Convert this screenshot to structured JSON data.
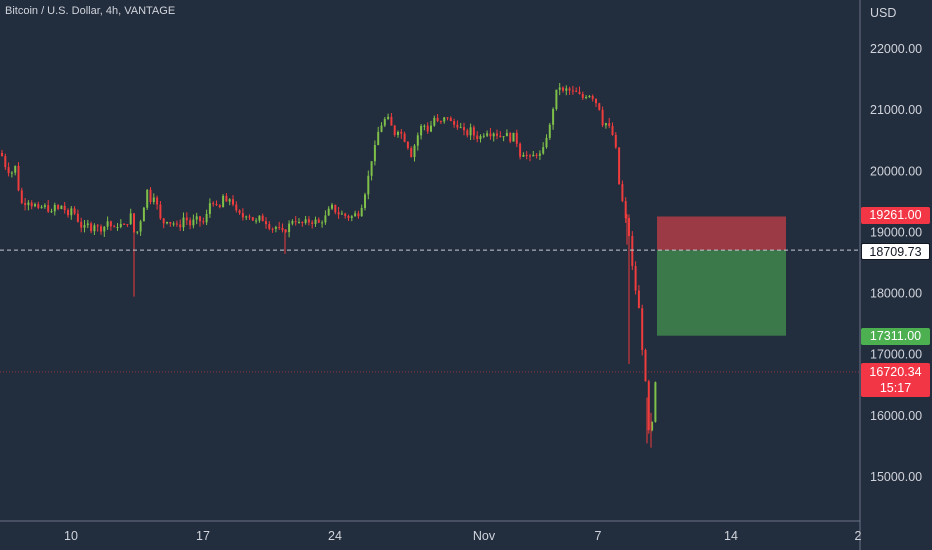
{
  "header": {
    "title": "Bitcoin / U.S. Dollar, 4h, VANTAGE"
  },
  "price_axis": {
    "currency": "USD",
    "ticks": [
      "22000.00",
      "21000.00",
      "20000.00",
      "19000.00",
      "18000.00",
      "17000.00",
      "16000.00",
      "15000.00"
    ]
  },
  "time_axis": {
    "ticks": [
      "10",
      "17",
      "24",
      "Nov",
      "7",
      "14",
      "2"
    ]
  },
  "position": {
    "stop_label": "19261.00",
    "target_label": "17311.00",
    "entry_label": "18709.73"
  },
  "last_price": {
    "price": "16720.34",
    "countdown": "15:17"
  },
  "colors": {
    "background": "#222d3d",
    "up": "#26a69a",
    "down": "#ef5350",
    "up_candle": "#7fc04a",
    "down_candle": "#ef3c3c",
    "stop_zone": "#a23b45",
    "target_zone": "#3c7a4b"
  },
  "chart_data": {
    "type": "candlestick",
    "symbol": "Bitcoin / U.S. Dollar",
    "interval": "4h",
    "exchange": "VANTAGE",
    "ylim": [
      14650,
      22700
    ],
    "y_ticks": [
      15000,
      16000,
      17000,
      18000,
      19000,
      20000,
      21000,
      22000
    ],
    "x_ticks": [
      "10",
      "17",
      "24",
      "Nov",
      "7",
      "14",
      "2"
    ],
    "entry": 18709.73,
    "stop": 19261.0,
    "target": 17311.0,
    "last": 16720.34,
    "close_path": [
      [
        0,
        20300
      ],
      [
        5,
        20050
      ],
      [
        10,
        19950
      ],
      [
        14,
        20100
      ],
      [
        18,
        19650
      ],
      [
        22,
        19400
      ],
      [
        26,
        19550
      ],
      [
        30,
        19450
      ],
      [
        34,
        19450
      ],
      [
        38,
        19350
      ],
      [
        42,
        19450
      ],
      [
        46,
        19400
      ],
      [
        50,
        19300
      ],
      [
        54,
        19450
      ],
      [
        58,
        19350
      ],
      [
        62,
        19500
      ],
      [
        66,
        19200
      ],
      [
        70,
        19400
      ],
      [
        74,
        19300
      ],
      [
        78,
        19150
      ],
      [
        82,
        19050
      ],
      [
        86,
        19150
      ],
      [
        90,
        19050
      ],
      [
        94,
        19150
      ],
      [
        98,
        19050
      ],
      [
        102,
        19050
      ],
      [
        106,
        19200
      ],
      [
        110,
        19100
      ],
      [
        114,
        19050
      ],
      [
        118,
        19150
      ],
      [
        122,
        19100
      ],
      [
        126,
        19150
      ],
      [
        130,
        19300
      ],
      [
        134,
        18900
      ],
      [
        138,
        19100
      ],
      [
        142,
        19350
      ],
      [
        146,
        19700
      ],
      [
        150,
        19500
      ],
      [
        154,
        19650
      ],
      [
        158,
        19250
      ],
      [
        162,
        19150
      ],
      [
        166,
        19200
      ],
      [
        170,
        19150
      ],
      [
        174,
        19150
      ],
      [
        178,
        19050
      ],
      [
        182,
        19250
      ],
      [
        186,
        19200
      ],
      [
        190,
        19100
      ],
      [
        194,
        19250
      ],
      [
        198,
        19200
      ],
      [
        202,
        19150
      ],
      [
        206,
        19300
      ],
      [
        210,
        19550
      ],
      [
        214,
        19450
      ],
      [
        218,
        19350
      ],
      [
        222,
        19600
      ],
      [
        226,
        19450
      ],
      [
        230,
        19600
      ],
      [
        234,
        19350
      ],
      [
        238,
        19300
      ],
      [
        242,
        19250
      ],
      [
        246,
        19300
      ],
      [
        250,
        19250
      ],
      [
        254,
        19150
      ],
      [
        258,
        19250
      ],
      [
        262,
        19200
      ],
      [
        266,
        19150
      ],
      [
        270,
        19050
      ],
      [
        274,
        19100
      ],
      [
        278,
        19050
      ],
      [
        282,
        19000
      ],
      [
        286,
        19050
      ],
      [
        290,
        19200
      ],
      [
        294,
        19200
      ],
      [
        298,
        19150
      ],
      [
        302,
        19150
      ],
      [
        306,
        19200
      ],
      [
        310,
        19150
      ],
      [
        314,
        19200
      ],
      [
        318,
        19150
      ],
      [
        322,
        19200
      ],
      [
        326,
        19300
      ],
      [
        330,
        19450
      ],
      [
        334,
        19350
      ],
      [
        338,
        19300
      ],
      [
        342,
        19300
      ],
      [
        346,
        19250
      ],
      [
        350,
        19250
      ],
      [
        354,
        19300
      ],
      [
        358,
        19300
      ],
      [
        362,
        19500
      ],
      [
        366,
        19800
      ],
      [
        370,
        20150
      ],
      [
        374,
        20400
      ],
      [
        378,
        20700
      ],
      [
        382,
        20800
      ],
      [
        386,
        20900
      ],
      [
        390,
        20750
      ],
      [
        394,
        20600
      ],
      [
        398,
        20700
      ],
      [
        402,
        20550
      ],
      [
        406,
        20450
      ],
      [
        410,
        20250
      ],
      [
        414,
        20450
      ],
      [
        418,
        20650
      ],
      [
        422,
        20800
      ],
      [
        426,
        20650
      ],
      [
        430,
        20750
      ],
      [
        434,
        20900
      ],
      [
        438,
        20750
      ],
      [
        442,
        20850
      ],
      [
        446,
        20900
      ],
      [
        450,
        20800
      ],
      [
        454,
        20750
      ],
      [
        458,
        20750
      ],
      [
        462,
        20650
      ],
      [
        466,
        20600
      ],
      [
        470,
        20700
      ],
      [
        474,
        20550
      ],
      [
        478,
        20550
      ],
      [
        482,
        20600
      ],
      [
        486,
        20650
      ],
      [
        490,
        20600
      ],
      [
        494,
        20650
      ],
      [
        498,
        20550
      ],
      [
        502,
        20600
      ],
      [
        506,
        20600
      ],
      [
        510,
        20500
      ],
      [
        514,
        20650
      ],
      [
        518,
        20250
      ],
      [
        522,
        20300
      ],
      [
        526,
        20250
      ],
      [
        530,
        20200
      ],
      [
        534,
        20300
      ],
      [
        538,
        20250
      ],
      [
        542,
        20350
      ],
      [
        546,
        20600
      ],
      [
        550,
        20800
      ],
      [
        554,
        21250
      ],
      [
        558,
        21400
      ],
      [
        562,
        21300
      ],
      [
        566,
        21350
      ],
      [
        570,
        21300
      ],
      [
        574,
        21300
      ],
      [
        578,
        21250
      ],
      [
        582,
        21200
      ],
      [
        586,
        21250
      ],
      [
        590,
        21250
      ],
      [
        594,
        21150
      ],
      [
        598,
        21050
      ],
      [
        602,
        20750
      ],
      [
        606,
        20800
      ],
      [
        610,
        20650
      ],
      [
        614,
        20500
      ],
      [
        618,
        19800
      ],
      [
        622,
        19450
      ],
      [
        626,
        19100
      ],
      [
        630,
        18800
      ],
      [
        633,
        17950
      ],
      [
        636,
        18150
      ],
      [
        640,
        17300
      ],
      [
        644,
        16650
      ],
      [
        648,
        15700
      ],
      [
        651,
        15850
      ],
      [
        654,
        16500
      ],
      [
        657,
        16720
      ]
    ]
  }
}
